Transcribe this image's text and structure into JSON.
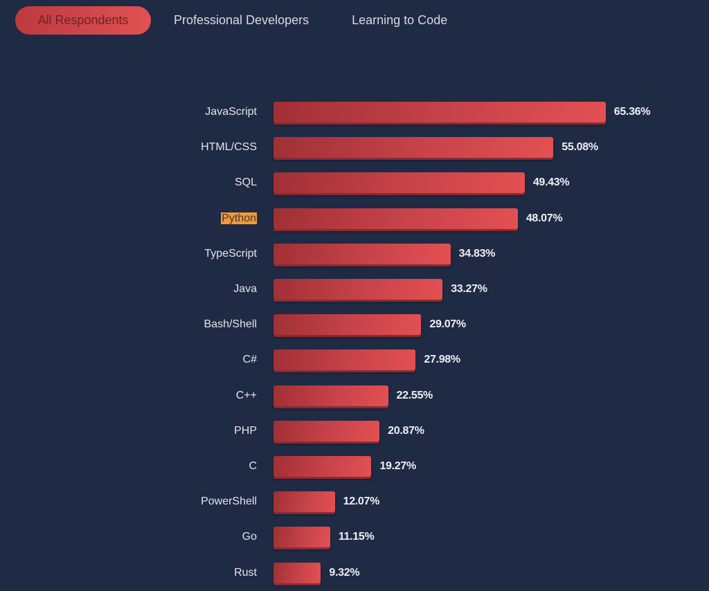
{
  "tabs": [
    {
      "label": "All Respondents",
      "active": true
    },
    {
      "label": "Professional Developers",
      "active": false
    },
    {
      "label": "Learning to Code",
      "active": false
    }
  ],
  "colors": {
    "background": "#1f2a44",
    "bar_start": "#a03035",
    "bar_end": "#e35052",
    "highlight": "#f49a32",
    "text": "#e4e6eb"
  },
  "chart_data": {
    "type": "bar",
    "orientation": "horizontal",
    "title": "",
    "xlabel": "",
    "ylabel": "",
    "xlim": [
      0,
      70
    ],
    "grid": false,
    "highlighted_category": "Python",
    "categories": [
      "JavaScript",
      "HTML/CSS",
      "SQL",
      "Python",
      "TypeScript",
      "Java",
      "Bash/Shell",
      "C#",
      "C++",
      "PHP",
      "C",
      "PowerShell",
      "Go",
      "Rust"
    ],
    "values": [
      65.36,
      55.08,
      49.43,
      48.07,
      34.83,
      33.27,
      29.07,
      27.98,
      22.55,
      20.87,
      19.27,
      12.07,
      11.15,
      9.32
    ],
    "value_labels": [
      "65.36%",
      "55.08%",
      "49.43%",
      "48.07%",
      "34.83%",
      "33.27%",
      "29.07%",
      "27.98%",
      "22.55%",
      "20.87%",
      "19.27%",
      "12.07%",
      "11.15%",
      "9.32%"
    ]
  }
}
